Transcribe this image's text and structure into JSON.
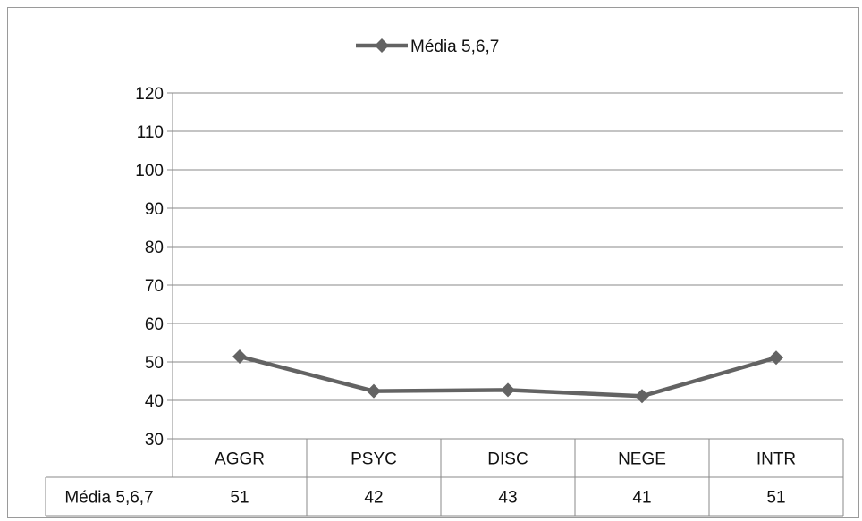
{
  "chart_data": {
    "type": "line",
    "categories": [
      "AGGR",
      "PSYC",
      "DISC",
      "NEGE",
      "INTR"
    ],
    "series": [
      {
        "name": "Média 5,6,7",
        "values": [
          51.4,
          42.4,
          42.7,
          41.1,
          51.1
        ],
        "table_values": [
          "51",
          "42",
          "43",
          "41",
          "51"
        ],
        "color": "#636363"
      }
    ],
    "ylim": [
      30,
      120
    ],
    "yticks": [
      "30",
      "40",
      "50",
      "60",
      "70",
      "80",
      "90",
      "100",
      "110",
      "120"
    ],
    "grid": true,
    "legend": {
      "position": "top-center",
      "label": "Média 5,6,7"
    },
    "data_table": true,
    "marker": "diamond"
  }
}
